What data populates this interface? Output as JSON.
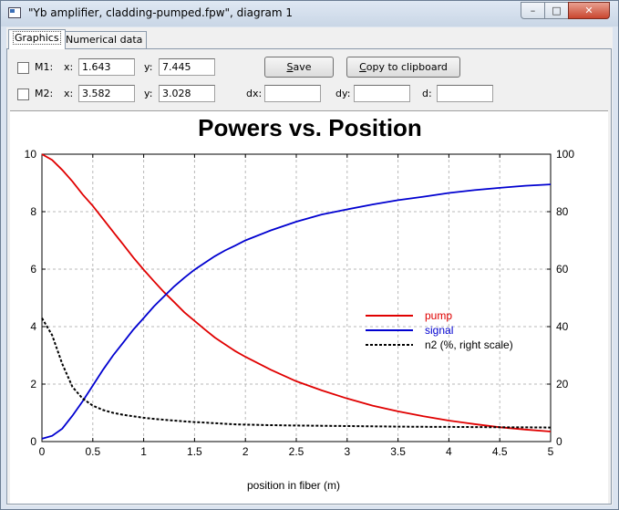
{
  "window": {
    "title": "\"Yb amplifier, cladding-pumped.fpw\", diagram 1",
    "min_glyph": "–",
    "max_glyph": "□",
    "close_glyph": "✕"
  },
  "tabs": [
    {
      "label": "Graphics",
      "active": true
    },
    {
      "label": "Numerical data",
      "active": false
    }
  ],
  "markers": {
    "m1": {
      "label": "M1:",
      "x_label": "x:",
      "x_value": "1.643",
      "y_label": "y:",
      "y_value": "7.445",
      "checked": false
    },
    "m2": {
      "label": "M2:",
      "x_label": "x:",
      "x_value": "3.582",
      "y_label": "y:",
      "y_value": "3.028",
      "checked": false
    }
  },
  "buttons": {
    "save_underlined": "S",
    "save_rest": "ave",
    "copy_underlined": "C",
    "copy_rest": "opy to clipboard"
  },
  "deltas": {
    "dx_label": "dx:",
    "dx_value": "",
    "dy_label": "dy:",
    "dy_value": "",
    "d_label": "d:",
    "d_value": ""
  },
  "chart_data": {
    "type": "line",
    "title": "Powers vs. Position",
    "xlabel": "position in fiber (m)",
    "xlim": [
      0,
      5
    ],
    "ylim_left": [
      0,
      10
    ],
    "ylim_right": [
      0,
      100
    ],
    "x_ticks": [
      "0",
      "0.5",
      "1",
      "1.5",
      "2",
      "2.5",
      "3",
      "3.5",
      "4",
      "4.5",
      "5"
    ],
    "y_left_ticks": [
      "0",
      "2",
      "4",
      "6",
      "8",
      "10"
    ],
    "y_right_ticks": [
      "0",
      "20",
      "40",
      "60",
      "80",
      "100"
    ],
    "grid": true,
    "legend_position": "right-middle",
    "x": [
      0,
      0.1,
      0.2,
      0.3,
      0.4,
      0.5,
      0.6,
      0.7,
      0.8,
      0.9,
      1.0,
      1.1,
      1.2,
      1.3,
      1.4,
      1.5,
      1.6,
      1.7,
      1.8,
      1.9,
      2.0,
      2.25,
      2.5,
      2.75,
      3.0,
      3.25,
      3.5,
      3.75,
      4.0,
      4.25,
      4.5,
      4.75,
      5.0
    ],
    "series": [
      {
        "name": "pump",
        "color": "#e00000",
        "axis": "left",
        "style": "solid",
        "values": [
          10.0,
          9.8,
          9.45,
          9.05,
          8.6,
          8.2,
          7.75,
          7.3,
          6.85,
          6.4,
          5.98,
          5.58,
          5.2,
          4.85,
          4.5,
          4.2,
          3.9,
          3.62,
          3.38,
          3.15,
          2.95,
          2.5,
          2.1,
          1.78,
          1.5,
          1.25,
          1.05,
          0.88,
          0.73,
          0.61,
          0.5,
          0.42,
          0.35
        ]
      },
      {
        "name": "signal",
        "color": "#0000d0",
        "axis": "left",
        "style": "solid",
        "values": [
          0.1,
          0.2,
          0.45,
          0.9,
          1.4,
          1.95,
          2.5,
          3.0,
          3.45,
          3.9,
          4.3,
          4.7,
          5.05,
          5.4,
          5.7,
          5.98,
          6.22,
          6.45,
          6.65,
          6.82,
          7.0,
          7.35,
          7.65,
          7.9,
          8.08,
          8.25,
          8.4,
          8.52,
          8.65,
          8.75,
          8.83,
          8.9,
          8.95
        ]
      },
      {
        "name": "n2 (%, right scale)",
        "color": "#000000",
        "axis": "right",
        "style": "dashed",
        "values": [
          43,
          37,
          27,
          19,
          15,
          12.5,
          11,
          10,
          9.3,
          8.8,
          8.3,
          7.9,
          7.6,
          7.3,
          7.0,
          6.8,
          6.6,
          6.4,
          6.2,
          6.0,
          5.9,
          5.7,
          5.6,
          5.5,
          5.4,
          5.3,
          5.2,
          5.15,
          5.1,
          5.05,
          5.0,
          4.95,
          4.9
        ]
      }
    ]
  }
}
